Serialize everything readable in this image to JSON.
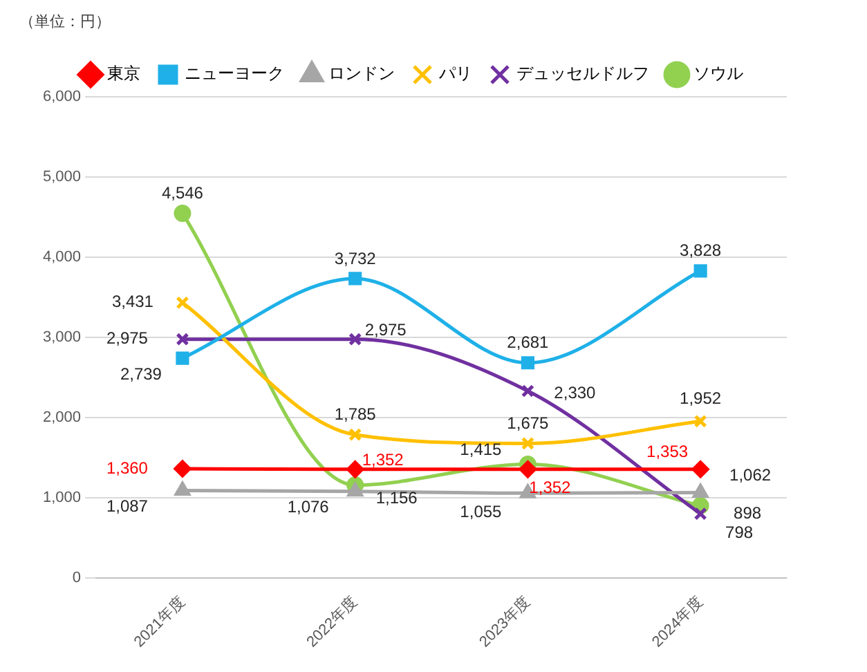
{
  "chart_data": {
    "type": "line",
    "ylabel": "（単位：円）",
    "categories": [
      "2021年度",
      "2022年度",
      "2023年度",
      "2024年度"
    ],
    "series": [
      {
        "name": "東京",
        "color": "#ff0000",
        "marker": "diamond",
        "values": [
          1360,
          1352,
          1352,
          1353
        ],
        "value_labels": [
          "1,360",
          "1,352",
          "1,352",
          "1,353"
        ]
      },
      {
        "name": "ニューヨーク",
        "color": "#1fb0e8",
        "marker": "square",
        "values": [
          2739,
          3732,
          2681,
          3828
        ],
        "value_labels": [
          "2,739",
          "3,732",
          "2,681",
          "3,828"
        ]
      },
      {
        "name": "ロンドン",
        "color": "#a6a6a6",
        "marker": "triangle",
        "values": [
          1087,
          1076,
          1055,
          1062
        ],
        "value_labels": [
          "1,087",
          "1,076",
          "1,055",
          "1,062"
        ]
      },
      {
        "name": "パリ",
        "color": "#ffc000",
        "marker": "cross",
        "values": [
          3431,
          1785,
          1675,
          1952
        ],
        "value_labels": [
          "3,431",
          "1,785",
          "1,675",
          "1,952"
        ]
      },
      {
        "name": "デュッセルドルフ",
        "color": "#7030a0",
        "marker": "cross",
        "values": [
          2975,
          2975,
          2330,
          798
        ],
        "value_labels": [
          "2,975",
          "2,975",
          "2,330",
          "798"
        ]
      },
      {
        "name": "ソウル",
        "color": "#92d050",
        "marker": "circle",
        "values": [
          4546,
          1156,
          1415,
          898
        ],
        "value_labels": [
          "4,546",
          "1,156",
          "1,415",
          "898"
        ]
      }
    ],
    "ylim": [
      0,
      6000
    ],
    "yticks": [
      {
        "value": 0,
        "label": "0"
      },
      {
        "value": 1000,
        "label": "1,000"
      },
      {
        "value": 2000,
        "label": "2,000"
      },
      {
        "value": 3000,
        "label": "3,000"
      },
      {
        "value": 4000,
        "label": "4,000"
      },
      {
        "value": 5000,
        "label": "5,000"
      },
      {
        "value": 6000,
        "label": "6,000"
      }
    ],
    "grid": "y",
    "legend": "top"
  }
}
